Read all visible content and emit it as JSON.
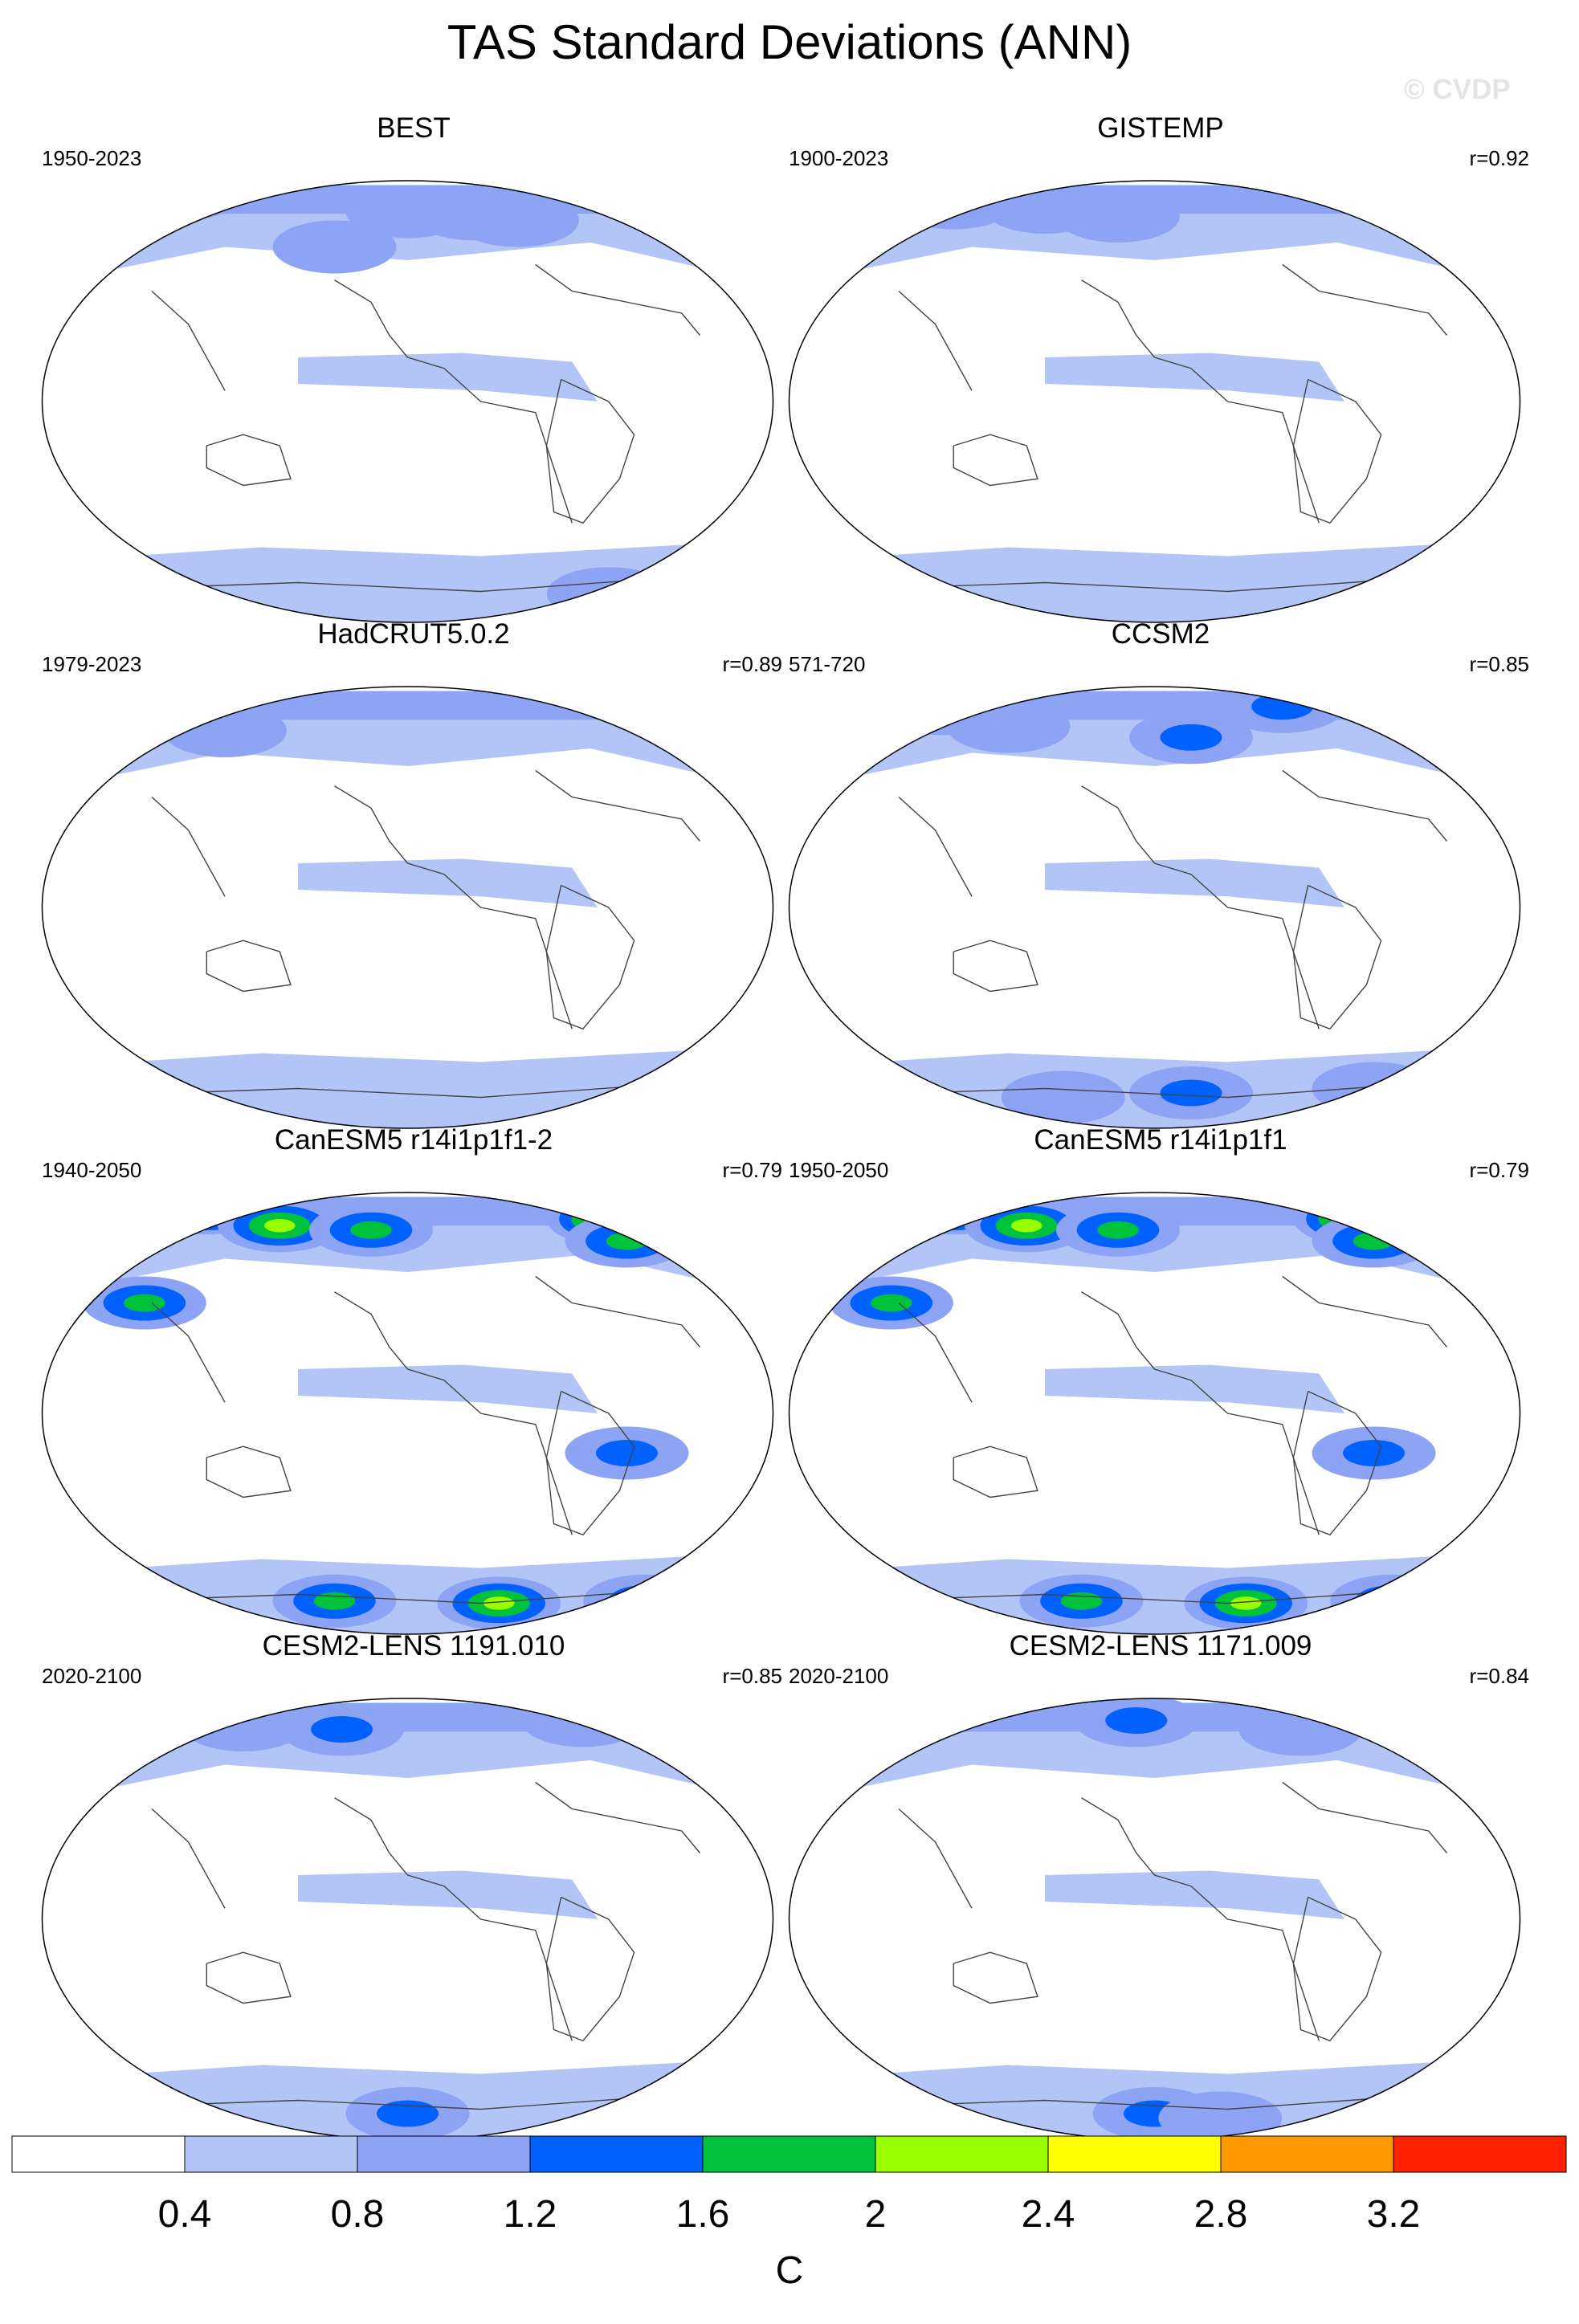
{
  "title": "TAS Standard Deviations (ANN)",
  "watermark": "© CVDP",
  "panels": [
    {
      "title": "BEST",
      "period": "1950-2023",
      "r": "",
      "hotspots": [
        [
          -0.62,
          0.94,
          0.9
        ],
        [
          -0.2,
          0.7,
          0.9
        ],
        [
          -0.0,
          0.86,
          0.9
        ],
        [
          0.18,
          0.85,
          1.0
        ],
        [
          0.3,
          0.82,
          1.0
        ],
        [
          0.55,
          -0.87,
          0.9
        ]
      ]
    },
    {
      "title": "GISTEMP",
      "period": "1900-2023",
      "r": "r=0.92",
      "hotspots": [
        [
          -0.55,
          0.9,
          0.9
        ],
        [
          -0.3,
          0.88,
          0.9
        ],
        [
          -0.1,
          0.84,
          0.9
        ]
      ]
    },
    {
      "title": "HadCRUT5.0.2",
      "period": "1979-2023",
      "r": "r=0.89",
      "hotspots": [
        [
          -0.5,
          0.8,
          1.0
        ]
      ]
    },
    {
      "title": "CCSM2",
      "period": "571-720",
      "r": "r=0.85",
      "hotspots": [
        [
          -0.58,
          0.9,
          1.6
        ],
        [
          -0.4,
          0.82,
          1.0
        ],
        [
          0.1,
          0.77,
          1.2
        ],
        [
          0.35,
          0.91,
          1.2
        ],
        [
          0.1,
          -0.84,
          1.2
        ],
        [
          -0.25,
          -0.86,
          0.9
        ],
        [
          0.6,
          -0.82,
          0.9
        ]
      ]
    },
    {
      "title": "CanESM5 r14i1p1f1-2",
      "period": "1940-2050",
      "r": "r=0.79",
      "hotspots": [
        [
          -0.55,
          0.93,
          3.0
        ],
        [
          -0.35,
          0.85,
          2.0
        ],
        [
          -0.1,
          0.83,
          1.6
        ],
        [
          0.55,
          0.88,
          2.4
        ],
        [
          0.6,
          0.78,
          1.6
        ],
        [
          -0.72,
          0.5,
          1.6
        ],
        [
          0.6,
          -0.18,
          1.2
        ],
        [
          0.25,
          -0.86,
          2.0
        ],
        [
          -0.2,
          -0.85,
          1.6
        ],
        [
          0.65,
          -0.85,
          1.4
        ]
      ]
    },
    {
      "title": "CanESM5 r14i1p1f1",
      "period": "1950-2050",
      "r": "r=0.79",
      "hotspots": [
        [
          -0.55,
          0.93,
          3.0
        ],
        [
          -0.35,
          0.85,
          2.0
        ],
        [
          -0.1,
          0.83,
          1.6
        ],
        [
          0.55,
          0.88,
          2.4
        ],
        [
          0.6,
          0.78,
          1.6
        ],
        [
          -0.72,
          0.5,
          1.6
        ],
        [
          0.6,
          -0.18,
          1.2
        ],
        [
          0.25,
          -0.86,
          2.0
        ],
        [
          -0.2,
          -0.85,
          1.6
        ],
        [
          0.65,
          -0.85,
          1.4
        ]
      ]
    },
    {
      "title": "CESM2-LENS 1191.010",
      "period": "2020-2100",
      "r": "r=0.85",
      "hotspots": [
        [
          -0.45,
          0.88,
          1.0
        ],
        [
          -0.18,
          0.86,
          1.2
        ],
        [
          0.48,
          0.9,
          1.0
        ],
        [
          0.0,
          -0.88,
          1.2
        ]
      ]
    },
    {
      "title": "CESM2-LENS 1171.009",
      "period": "2020-2100",
      "r": "r=0.84",
      "hotspots": [
        [
          -0.05,
          0.9,
          1.2
        ],
        [
          0.4,
          0.86,
          1.0
        ],
        [
          0.0,
          -0.88,
          1.2
        ],
        [
          0.18,
          -0.9,
          1.0
        ]
      ]
    }
  ],
  "colorbar": {
    "colors": [
      "#ffffff",
      "#b3c5f7",
      "#8da3f3",
      "#0061ff",
      "#00c23b",
      "#99ff00",
      "#ffff00",
      "#ff9900",
      "#ff2200"
    ],
    "labels": [
      "0.4",
      "0.8",
      "1.2",
      "1.6",
      "2",
      "2.4",
      "2.8",
      "3.2"
    ],
    "unit": "C"
  }
}
